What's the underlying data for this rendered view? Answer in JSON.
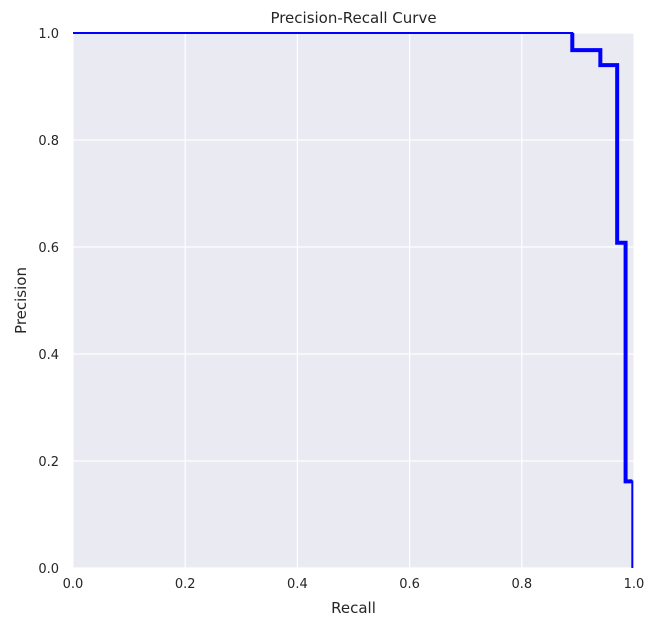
{
  "chart_data": {
    "type": "line",
    "title": "Precision-Recall Curve",
    "xlabel": "Recall",
    "ylabel": "Precision",
    "xlim": [
      0.0,
      1.0
    ],
    "ylim": [
      0.0,
      1.0
    ],
    "grid": true,
    "x_ticks": [
      "0.0",
      "0.2",
      "0.4",
      "0.6",
      "0.8",
      "1.0"
    ],
    "y_ticks": [
      "0.0",
      "0.2",
      "0.4",
      "0.6",
      "0.8",
      "1.0"
    ],
    "series": [
      {
        "color": "#0000ff",
        "points": [
          [
            0.0,
            1.0
          ],
          [
            0.89,
            1.0
          ],
          [
            0.89,
            0.968
          ],
          [
            0.94,
            0.968
          ],
          [
            0.94,
            0.94
          ],
          [
            0.97,
            0.94
          ],
          [
            0.97,
            0.608
          ],
          [
            0.985,
            0.608
          ],
          [
            0.985,
            0.162
          ],
          [
            0.997,
            0.162
          ],
          [
            0.997,
            0.0
          ]
        ]
      }
    ],
    "background_color": "#eaeaf2",
    "grid_color": "#ffffff"
  }
}
